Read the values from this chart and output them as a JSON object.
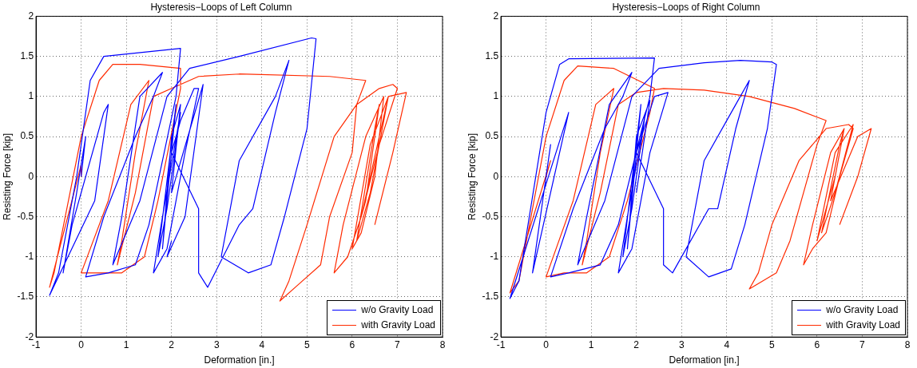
{
  "chart_data": [
    {
      "type": "line",
      "title": "Hysteresis−Loops of Left Column",
      "xlabel": "Deformation [in.]",
      "ylabel": "Resisting Force [kip]",
      "xlim": [
        -1,
        8
      ],
      "xticks": [
        -1,
        0,
        1,
        2,
        3,
        4,
        5,
        6,
        7,
        8
      ],
      "ylim": [
        -2,
        2
      ],
      "yticks": [
        -2,
        -1.5,
        -1,
        -0.5,
        0,
        0.5,
        1,
        1.5,
        2
      ],
      "grid": true,
      "legend": "bottom right",
      "marker": "none",
      "line_style": "solid",
      "series": [
        {
          "name": "w/o Gravity Load",
          "color": "#0000ff",
          "x": [
            0,
            0.1,
            -0.1,
            -0.4,
            -0.2,
            0.5,
            0.6,
            0.3,
            -0.7,
            -0.5,
            -0.1,
            0.2,
            0.5,
            2.2,
            2.1,
            1.5,
            1.2,
            0.6,
            0.1,
            0.5,
            1.2,
            1.6,
            1.8,
            1.3,
            0.9,
            0.7,
            1.3,
            1.9,
            2.4,
            3.5,
            5.1,
            5.2,
            5.0,
            4.5,
            4.2,
            3.7,
            3.1,
            3.5,
            4.3,
            4.6,
            4.3,
            3.8,
            3.5,
            2.8,
            2.6,
            2.6,
            2.0,
            2.2,
            2.5,
            2.6,
            2.3,
            1.9,
            1.6,
            1.8,
            2.2,
            1.9,
            1.7,
            2.1,
            1.9,
            1.8,
            2.0,
            2.2,
            2.0,
            2.7,
            2.3,
            1.9,
            2.0
          ],
          "values": [
            0,
            0.5,
            -0.2,
            -1.2,
            -0.6,
            0.8,
            0.9,
            -0.3,
            -1.48,
            -1.2,
            0,
            1.2,
            1.5,
            1.6,
            1.0,
            -0.6,
            -1.1,
            -1.2,
            -1.25,
            -0.5,
            0.5,
            1.0,
            1.3,
            1.0,
            -0.5,
            -1.1,
            -0.3,
            1.0,
            1.35,
            1.5,
            1.73,
            1.72,
            0.6,
            -0.5,
            -1.1,
            -1.2,
            -1.0,
            0.2,
            1.0,
            1.45,
            0.8,
            -0.4,
            -0.6,
            -1.38,
            -1.2,
            -0.4,
            0.3,
            0.7,
            1.1,
            1.1,
            0.3,
            -0.9,
            -1.2,
            -0.5,
            0.8,
            -0.4,
            -1.0,
            0.9,
            -0.3,
            -0.9,
            0.5,
            0.9,
            -0.2,
            1.15,
            -0.5,
            -1.0,
            -0.8
          ]
        },
        {
          "name": "with Gravity Load",
          "color": "#ff2a00",
          "x": [
            0,
            0,
            -0.7,
            -0.6,
            0,
            0.4,
            0.7,
            1.3,
            2.2,
            2.2,
            1.7,
            1.4,
            0.9,
            0.5,
            0,
            0.6,
            1.1,
            1.5,
            1.2,
            0.9,
            0.8,
            1.2,
            1.6,
            2.0,
            2.6,
            3.5,
            5.5,
            6.3,
            6.1,
            6.0,
            5.5,
            5.3,
            4.8,
            4.4,
            4.6,
            5.0,
            5.6,
            6.1,
            6.6,
            6.9,
            7.0,
            6.6,
            6.2,
            5.9,
            5.6,
            5.8,
            6.3,
            6.7,
            6.5,
            6.2,
            6.0,
            6.4,
            6.8,
            6.4,
            6.1,
            6.5,
            6.6,
            6.3,
            6.2,
            6.8,
            7.2,
            6.9,
            6.5
          ],
          "values": [
            0,
            0.15,
            -1.38,
            -1.2,
            0.5,
            1.2,
            1.4,
            1.4,
            1.35,
            1.1,
            -0.3,
            -1.0,
            -1.2,
            -1.2,
            -1.2,
            -0.3,
            0.9,
            1.2,
            0.3,
            -0.8,
            -1.1,
            -0.2,
            1.0,
            1.1,
            1.25,
            1.28,
            1.25,
            1.2,
            0.9,
            0.3,
            -0.5,
            -1.1,
            -1.35,
            -1.55,
            -1.3,
            -0.6,
            0.5,
            0.9,
            1.1,
            1.15,
            1.1,
            0.4,
            -0.5,
            -1.0,
            -1.2,
            -0.6,
            0.5,
            1.0,
            0,
            -0.7,
            -0.9,
            0.4,
            1.0,
            -0.2,
            -0.8,
            0.6,
            0.9,
            -0.3,
            -0.5,
            1.0,
            1.05,
            0.3,
            -0.6
          ]
        }
      ]
    },
    {
      "type": "line",
      "title": "Hysteresis−Loops of Right Column",
      "xlabel": "Deformation [in.]",
      "ylabel": "Resisting Force [kip]",
      "xlim": [
        -1,
        8
      ],
      "xticks": [
        -1,
        0,
        1,
        2,
        3,
        4,
        5,
        6,
        7,
        8
      ],
      "ylim": [
        -2,
        2
      ],
      "yticks": [
        -2,
        -1.5,
        -1,
        -0.5,
        0,
        0.5,
        1,
        1.5,
        2
      ],
      "grid": true,
      "legend": "bottom right",
      "marker": "none",
      "line_style": "solid",
      "series": [
        {
          "name": "w/o Gravity Load",
          "color": "#0000ff",
          "x": [
            0,
            0.1,
            -0.3,
            0.5,
            -0.8,
            -0.6,
            0,
            0.3,
            0.5,
            2.4,
            2.3,
            1.6,
            1.2,
            0.5,
            0.1,
            0.6,
            1.3,
            1.7,
            1.9,
            1.4,
            0.9,
            0.7,
            1.3,
            1.9,
            2.5,
            3.5,
            4.3,
            5.0,
            5.1,
            4.9,
            4.4,
            4.1,
            3.6,
            3.1,
            3.5,
            4.2,
            4.5,
            4.2,
            3.8,
            3.6,
            2.8,
            2.6,
            2.6,
            2.0,
            2.4,
            2.7,
            2.3,
            1.9,
            1.6,
            1.8,
            2.2,
            1.9,
            1.7,
            2.1,
            1.9,
            1.8,
            2.0,
            2.3,
            2.0
          ],
          "values": [
            0,
            0.4,
            -1.2,
            0.8,
            -1.52,
            -1.3,
            0.8,
            1.4,
            1.47,
            1.48,
            1.0,
            -0.6,
            -1.1,
            -1.2,
            -1.25,
            -0.4,
            0.6,
            1.0,
            1.3,
            0.9,
            -0.5,
            -1.1,
            -0.3,
            1.0,
            1.35,
            1.42,
            1.45,
            1.43,
            1.4,
            0.6,
            -0.6,
            -1.15,
            -1.25,
            -1.0,
            0.2,
            0.9,
            1.2,
            0.6,
            -0.4,
            -0.4,
            -1.2,
            -1.1,
            -0.4,
            0.3,
            1.0,
            1.05,
            0.3,
            -0.9,
            -1.2,
            -0.5,
            0.8,
            -0.4,
            -1.0,
            0.9,
            -0.3,
            -0.9,
            0.5,
            0.95,
            -0.2
          ]
        },
        {
          "name": "with Gravity Load",
          "color": "#ff2a00",
          "x": [
            0,
            0.1,
            -0.8,
            -0.6,
            0,
            0.4,
            0.7,
            1.5,
            2.4,
            2.3,
            1.8,
            1.4,
            0.9,
            0.4,
            0,
            0.6,
            1.1,
            1.5,
            1.2,
            0.9,
            0.8,
            1.2,
            1.6,
            2.0,
            2.6,
            3.5,
            4.5,
            5.5,
            6.2,
            6.0,
            5.7,
            5.4,
            5.1,
            4.5,
            4.7,
            5.0,
            5.6,
            6.2,
            6.7,
            6.8,
            6.5,
            6.2,
            5.9,
            5.7,
            5.9,
            6.3,
            6.6,
            6.4,
            6.1,
            6.0,
            6.4,
            6.8,
            6.4,
            6.1,
            6.5,
            6.6,
            6.3,
            6.9,
            7.2,
            6.9,
            6.5
          ],
          "values": [
            0,
            0.2,
            -1.45,
            -1.3,
            0.5,
            1.2,
            1.38,
            1.35,
            1.1,
            0.8,
            -0.3,
            -1.0,
            -1.2,
            -1.2,
            -1.25,
            -0.3,
            0.9,
            1.1,
            0.3,
            -0.8,
            -1.1,
            -0.2,
            0.9,
            1.05,
            1.1,
            1.08,
            1.0,
            0.85,
            0.7,
            0.4,
            -0.2,
            -0.8,
            -1.2,
            -1.4,
            -1.2,
            -0.6,
            0.2,
            0.6,
            0.65,
            0.6,
            0,
            -0.7,
            -0.9,
            -1.1,
            -0.6,
            0.3,
            0.6,
            0,
            -0.6,
            -0.8,
            0.3,
            0.65,
            -0.2,
            -0.7,
            0.4,
            0.6,
            -0.3,
            0.5,
            0.6,
            0,
            -0.6
          ]
        }
      ]
    }
  ]
}
